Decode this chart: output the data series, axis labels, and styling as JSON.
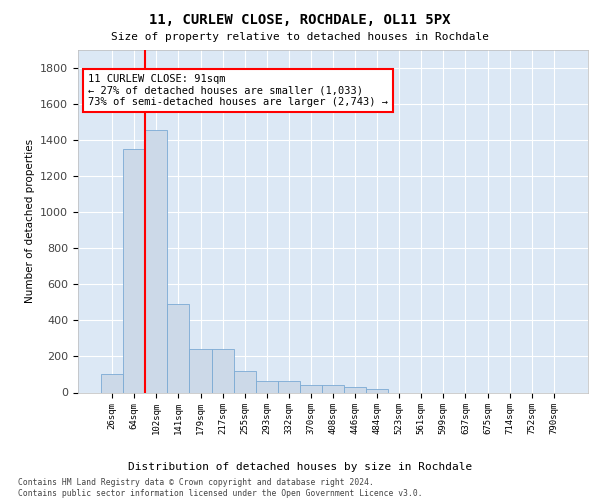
{
  "title": "11, CURLEW CLOSE, ROCHDALE, OL11 5PX",
  "subtitle": "Size of property relative to detached houses in Rochdale",
  "xlabel": "Distribution of detached houses by size in Rochdale",
  "ylabel": "Number of detached properties",
  "footnote": "Contains HM Land Registry data © Crown copyright and database right 2024.\nContains public sector information licensed under the Open Government Licence v3.0.",
  "bar_color": "#ccd9e8",
  "bar_edge_color": "#7baad4",
  "background_color": "#dce8f5",
  "red_line_x": 1.5,
  "annotation_text": "11 CURLEW CLOSE: 91sqm\n← 27% of detached houses are smaller (1,033)\n73% of semi-detached houses are larger (2,743) →",
  "categories": [
    "26sqm",
    "64sqm",
    "102sqm",
    "141sqm",
    "179sqm",
    "217sqm",
    "255sqm",
    "293sqm",
    "332sqm",
    "370sqm",
    "408sqm",
    "446sqm",
    "484sqm",
    "523sqm",
    "561sqm",
    "599sqm",
    "637sqm",
    "675sqm",
    "714sqm",
    "752sqm",
    "790sqm"
  ],
  "values": [
    100,
    1350,
    1455,
    490,
    240,
    240,
    120,
    65,
    65,
    40,
    40,
    30,
    20,
    0,
    0,
    0,
    0,
    0,
    0,
    0,
    0
  ],
  "ylim": [
    0,
    1900
  ],
  "yticks": [
    0,
    200,
    400,
    600,
    800,
    1000,
    1200,
    1400,
    1600,
    1800
  ]
}
